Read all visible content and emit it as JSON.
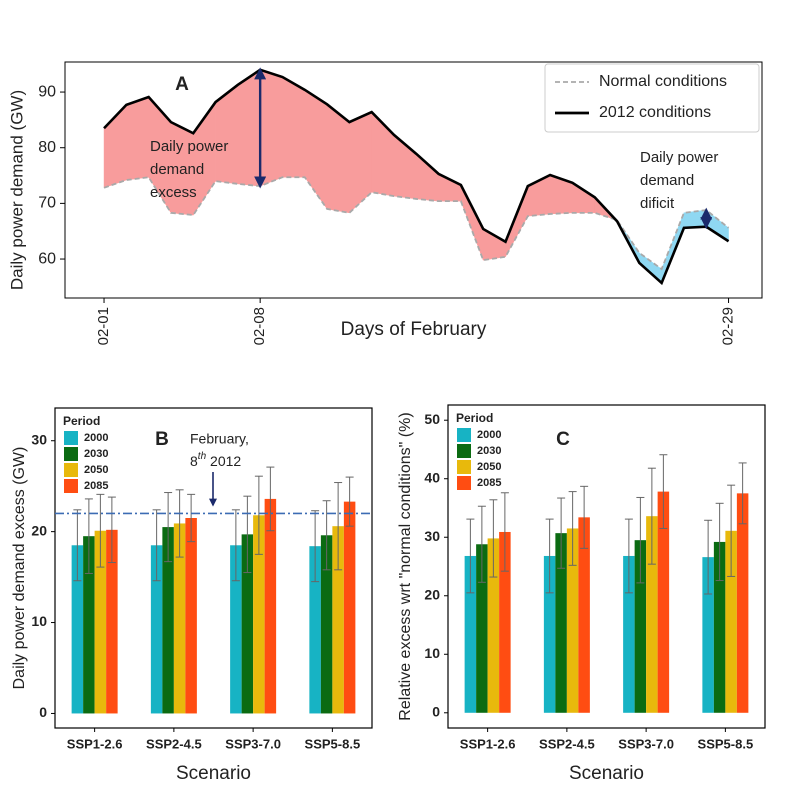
{
  "chart_data": [
    {
      "type": "line",
      "panel_label": "A",
      "x": [
        1,
        2,
        3,
        4,
        5,
        6,
        7,
        8,
        9,
        10,
        11,
        12,
        13,
        14,
        15,
        16,
        17,
        18,
        19,
        20,
        21,
        22,
        23,
        24,
        25,
        26,
        27,
        28,
        29
      ],
      "xlim": [
        -0.75,
        30.5
      ],
      "xticks": [
        {
          "value": 1,
          "label": "02-01"
        },
        {
          "value": 8,
          "label": "02-08"
        },
        {
          "value": 29,
          "label": "02-29"
        }
      ],
      "xlabel": "Days of February",
      "ylabel": "Daily power demand (GW)",
      "ylim": [
        53,
        95.4
      ],
      "yticks": [
        60,
        70,
        80,
        90
      ],
      "series": [
        {
          "name": "Normal conditions",
          "color": "#a9a9a9",
          "dashed": true,
          "values": [
            72.8,
            74.2,
            74.7,
            68.3,
            67.9,
            74.0,
            73.5,
            73.1,
            74.7,
            74.7,
            69.0,
            68.3,
            72.0,
            71.3,
            70.8,
            70.4,
            70.4,
            59.8,
            60.4,
            67.7,
            68.1,
            68.3,
            68.3,
            67.0,
            61.1,
            58.2,
            68.3,
            68.8,
            65.6
          ]
        },
        {
          "name": "2012 conditions",
          "color": "#000000",
          "dashed": false,
          "values": [
            83.5,
            87.7,
            89.1,
            84.6,
            82.6,
            88.2,
            91.3,
            94.0,
            92.7,
            90.4,
            87.8,
            84.6,
            86.4,
            82.3,
            78.9,
            75.3,
            73.3,
            65.4,
            63.1,
            73.1,
            75.1,
            73.7,
            71.1,
            66.8,
            59.3,
            55.7,
            65.6,
            65.8,
            63.2
          ]
        }
      ],
      "excess_color": "#f89c9c",
      "deficit_color": "#8fd8f2",
      "annotations": [
        {
          "lines": [
            "Daily power",
            "demand",
            "excess"
          ]
        },
        {
          "lines": [
            "Daily power",
            "demand",
            "dificit"
          ]
        }
      ],
      "legend": "upper right"
    },
    {
      "type": "bar",
      "panel_label": "B",
      "categories": [
        "SSP1-2.6",
        "SSP2-4.5",
        "SSP3-7.0",
        "SSP5-8.5"
      ],
      "xlabel": "Scenario",
      "ylabel": "Daily power demand excess (GW)",
      "ylim": [
        -1.6,
        33.6
      ],
      "yticks": [
        0,
        10,
        20,
        30
      ],
      "legend_title": "Period",
      "legend": "upper left",
      "series": [
        {
          "name": "2000",
          "color": "#17b3c4",
          "values": [
            18.5,
            18.5,
            18.5,
            18.4
          ],
          "errors": [
            3.9,
            3.9,
            3.9,
            3.9
          ]
        },
        {
          "name": "2030",
          "color": "#0b6b12",
          "values": [
            19.5,
            20.5,
            19.7,
            19.6
          ],
          "errors": [
            4.1,
            3.8,
            4.2,
            3.8
          ]
        },
        {
          "name": "2050",
          "color": "#e8b90c",
          "values": [
            20.1,
            20.9,
            21.8,
            20.6
          ],
          "errors": [
            4.0,
            3.7,
            4.3,
            4.8
          ]
        },
        {
          "name": "2085",
          "color": "#ff4d12",
          "values": [
            20.2,
            21.5,
            23.6,
            23.3
          ],
          "errors": [
            3.6,
            2.6,
            3.5,
            2.7
          ]
        }
      ],
      "reference_value": 22,
      "reference_label": [
        "February,",
        "8",
        "th",
        " 2012"
      ]
    },
    {
      "type": "bar",
      "panel_label": "C",
      "categories": [
        "SSP1-2.6",
        "SSP2-4.5",
        "SSP3-7.0",
        "SSP5-8.5"
      ],
      "xlabel": "Scenario",
      "ylabel": "Relative excess wrt \"normal conditions\" (%)",
      "ylim": [
        -2.6,
        52.6
      ],
      "yticks": [
        0,
        10,
        20,
        30,
        40,
        50
      ],
      "legend_title": "Period",
      "legend": "upper left",
      "series": [
        {
          "name": "2000",
          "color": "#17b3c4",
          "values": [
            26.8,
            26.8,
            26.8,
            26.6
          ],
          "errors": [
            6.3,
            6.3,
            6.3,
            6.3
          ]
        },
        {
          "name": "2030",
          "color": "#0b6b12",
          "values": [
            28.8,
            30.7,
            29.5,
            29.2
          ],
          "errors": [
            6.5,
            6.0,
            7.3,
            6.6
          ]
        },
        {
          "name": "2050",
          "color": "#e8b90c",
          "values": [
            29.8,
            31.5,
            33.6,
            31.1
          ],
          "errors": [
            6.6,
            6.3,
            8.2,
            7.8
          ]
        },
        {
          "name": "2085",
          "color": "#ff4d12",
          "values": [
            30.9,
            33.4,
            37.8,
            37.5
          ],
          "errors": [
            6.7,
            5.3,
            6.3,
            5.2
          ]
        }
      ]
    }
  ]
}
